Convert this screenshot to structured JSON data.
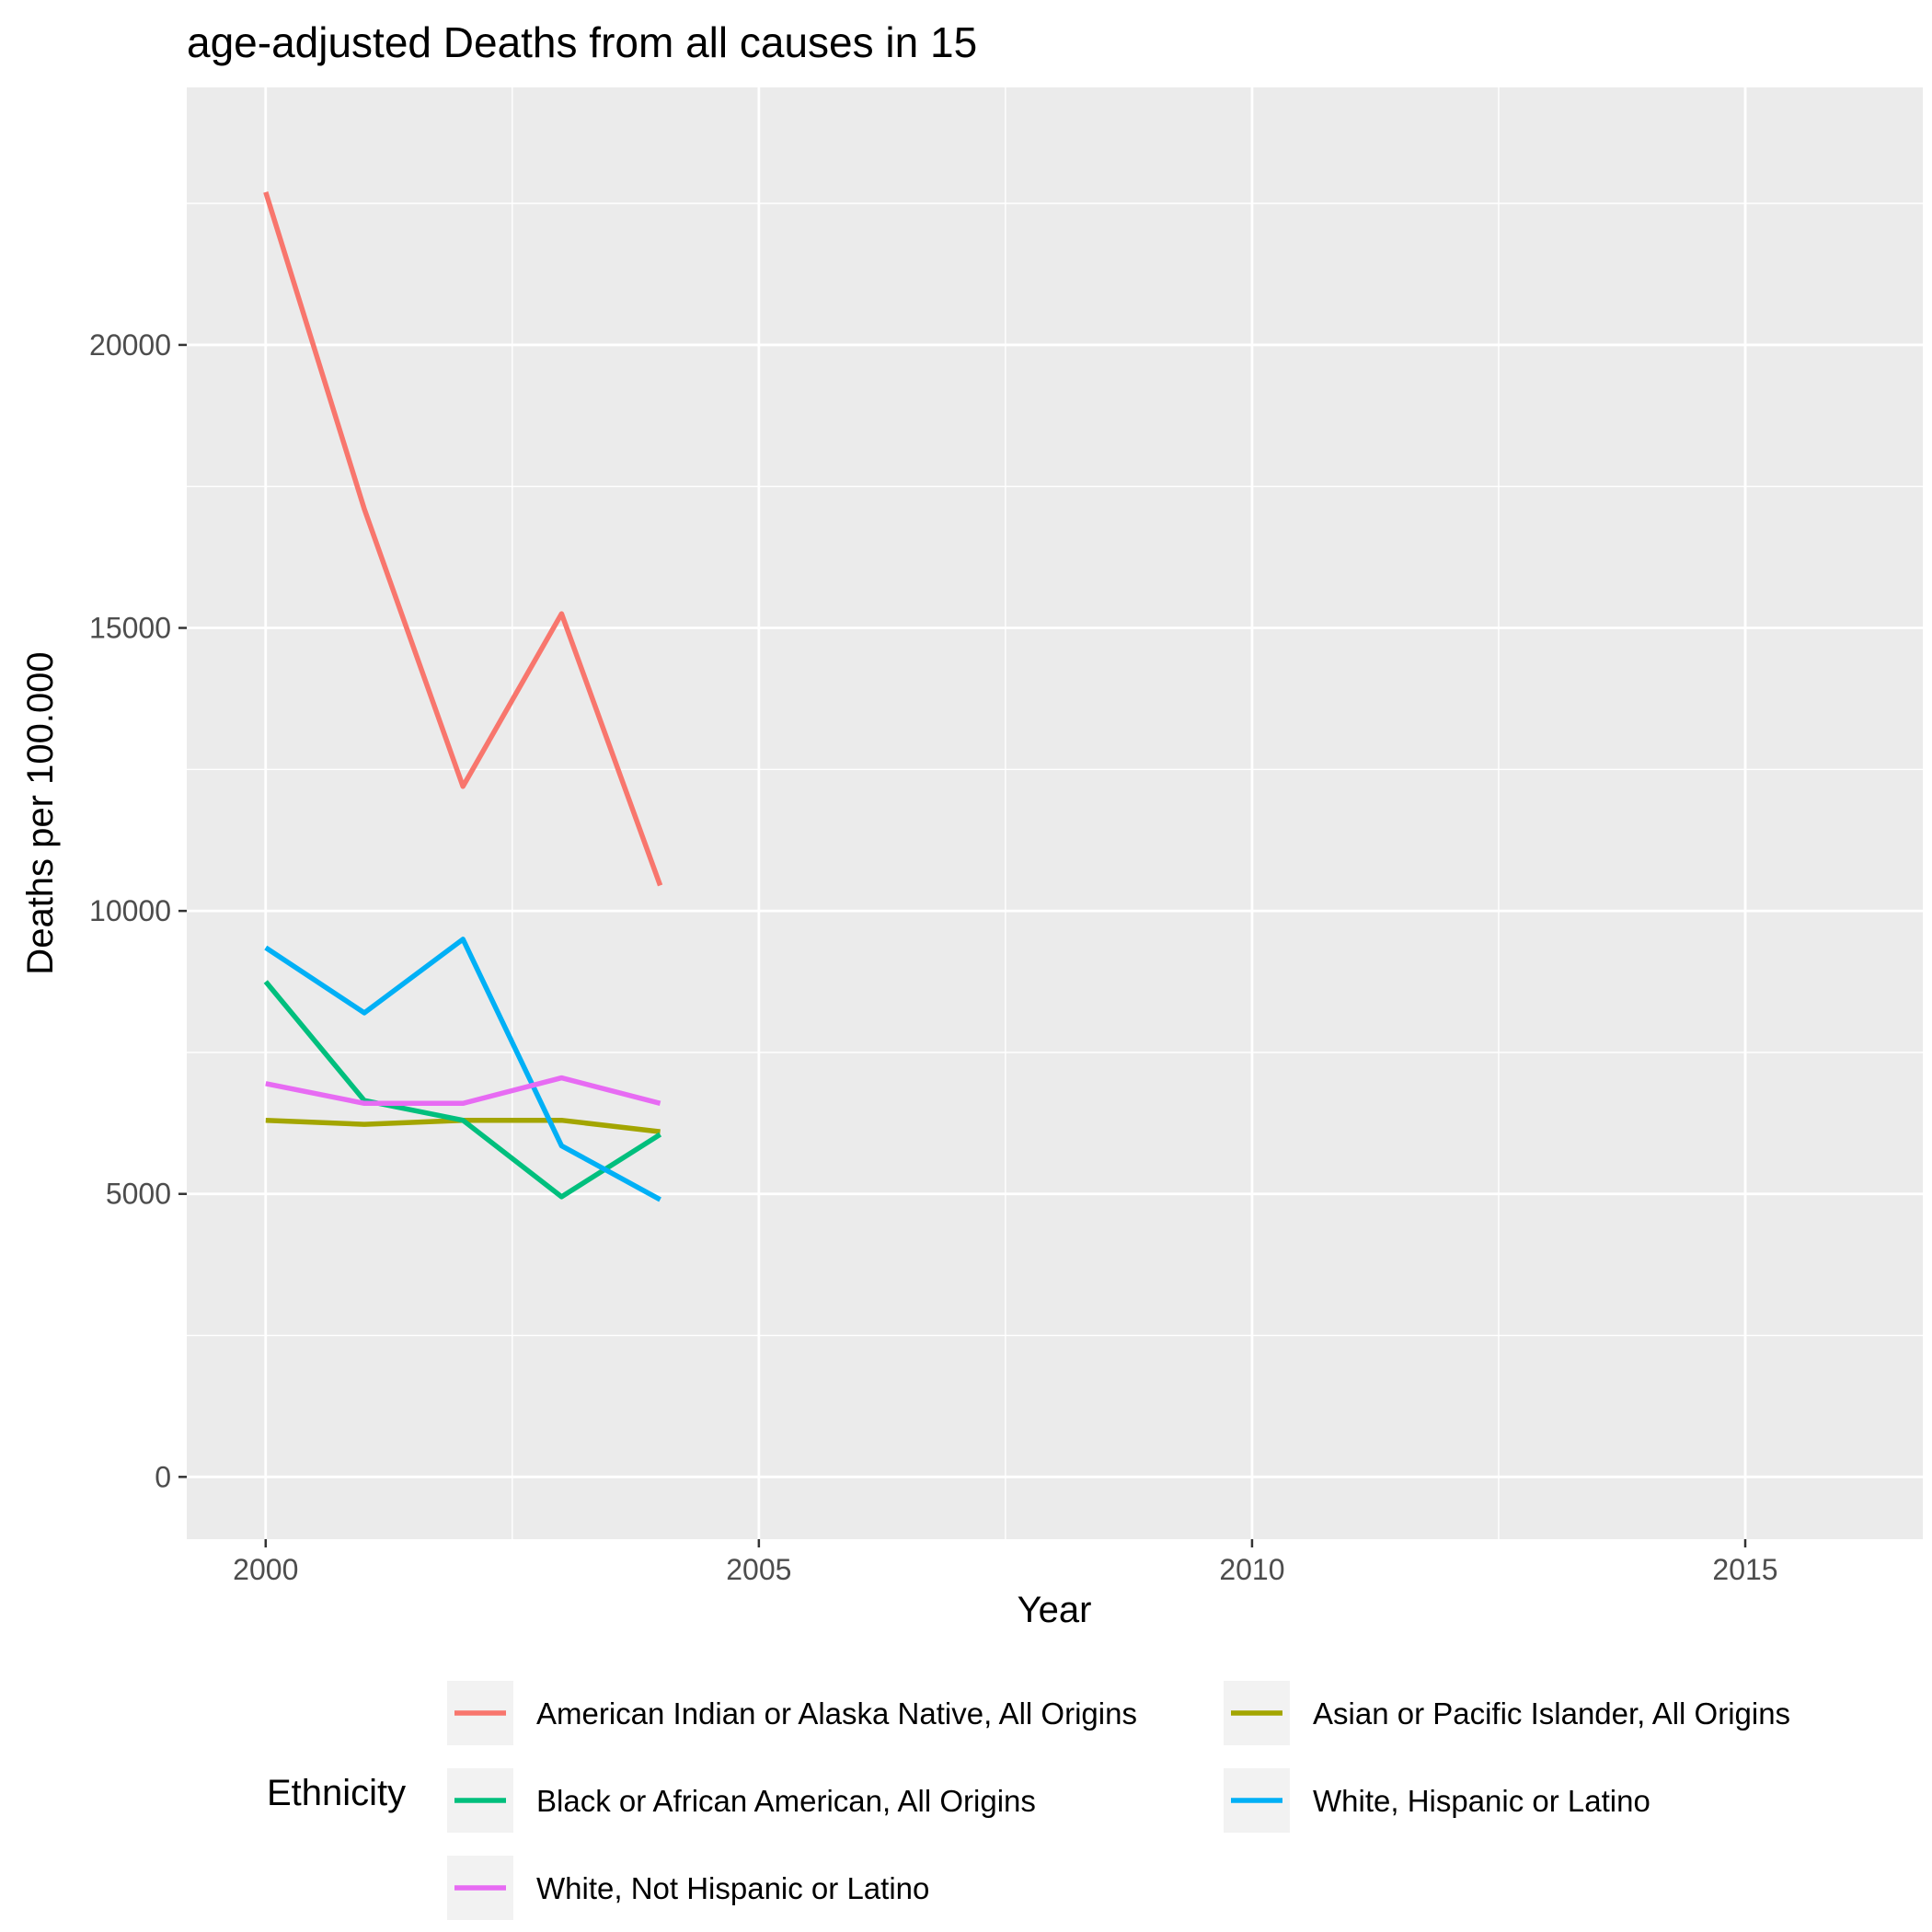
{
  "chart_data": {
    "type": "line",
    "title": "age-adjusted Deaths from all causes in 15",
    "xlabel": "Year",
    "ylabel": "Deaths per 100.000",
    "xlim": [
      1999.2,
      2016.8
    ],
    "ylim": [
      -1100,
      24550
    ],
    "x_ticks": [
      2000,
      2005,
      2010,
      2015
    ],
    "x_tick_labels": [
      "2000",
      "2005",
      "2010",
      "2015"
    ],
    "y_ticks": [
      0,
      5000,
      10000,
      15000,
      20000
    ],
    "y_tick_labels": [
      "0",
      "5000",
      "10000",
      "15000",
      "20000"
    ],
    "grid": true,
    "legend": {
      "title": "Ethnicity",
      "position": "bottom"
    },
    "series": [
      {
        "name": "American Indian or Alaska Native, All Origins",
        "color": "#F8766D",
        "x": [
          2000,
          2001,
          2002,
          2003,
          2004
        ],
        "y": [
          22700,
          17100,
          12200,
          15250,
          10450
        ]
      },
      {
        "name": "Asian or Pacific Islander, All Origins",
        "color": "#A3A500",
        "x": [
          2000,
          2001,
          2002,
          2003,
          2004
        ],
        "y": [
          6300,
          6230,
          6300,
          6300,
          6100
        ]
      },
      {
        "name": "Black or African American, All Origins",
        "color": "#00BF7D",
        "x": [
          2000,
          2001,
          2002,
          2003,
          2004
        ],
        "y": [
          8750,
          6650,
          6300,
          4950,
          6050
        ]
      },
      {
        "name": "White, Hispanic or Latino",
        "color": "#00B0F6",
        "x": [
          2000,
          2001,
          2002,
          2003,
          2004
        ],
        "y": [
          9350,
          8200,
          9500,
          5850,
          4900
        ]
      },
      {
        "name": "White, Not Hispanic or Latino",
        "color": "#E76BF3",
        "x": [
          2000,
          2001,
          2002,
          2003,
          2004
        ],
        "y": [
          6950,
          6600,
          6600,
          7050,
          6600
        ]
      }
    ]
  }
}
